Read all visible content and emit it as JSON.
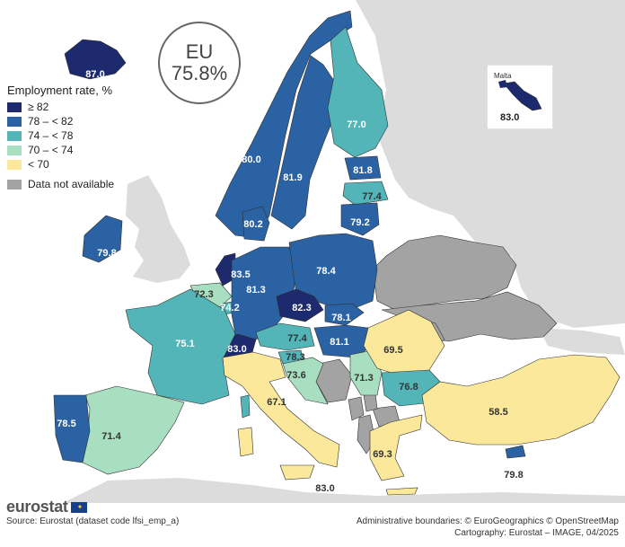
{
  "eu_badge": {
    "label": "EU",
    "value": "75.8%"
  },
  "legend": {
    "title": "Employment rate, %",
    "items": [
      {
        "label": "≥ 82",
        "color": "#1d2a6d"
      },
      {
        "label": "78 – < 82",
        "color": "#2b62a3"
      },
      {
        "label": "74 – < 78",
        "color": "#53b5b8"
      },
      {
        "label": "70 – < 74",
        "color": "#a7dfc0"
      },
      {
        "label": "< 70",
        "color": "#fbe89a"
      },
      {
        "label": "Data not available",
        "color": "#a3a3a3"
      }
    ]
  },
  "colors": {
    "non_eu_land": "#dcdcdc",
    "sea": "#ffffff",
    "borders": "#2f2f2f",
    "label_dark": "#222222",
    "label_light": "#ffffff"
  },
  "inset": {
    "title": "Malta",
    "value": "83.0"
  },
  "regions": [
    {
      "name": "Iceland",
      "value": "87.0"
    },
    {
      "name": "Norway",
      "value": "80.0"
    },
    {
      "name": "Sweden",
      "value": "81.9"
    },
    {
      "name": "Finland",
      "value": "77.0"
    },
    {
      "name": "Estonia",
      "value": "81.8"
    },
    {
      "name": "Latvia",
      "value": "77.4"
    },
    {
      "name": "Lithuania",
      "value": "79.2"
    },
    {
      "name": "Denmark",
      "value": "80.2"
    },
    {
      "name": "Ireland",
      "value": "79.8"
    },
    {
      "name": "Netherlands",
      "value": "83.5"
    },
    {
      "name": "Belgium",
      "value": "72.3"
    },
    {
      "name": "Luxembourg",
      "value": "74.2"
    },
    {
      "name": "Germany",
      "value": "81.3"
    },
    {
      "name": "Poland",
      "value": "78.4"
    },
    {
      "name": "Czechia",
      "value": "82.3"
    },
    {
      "name": "Slovakia",
      "value": "78.1"
    },
    {
      "name": "Hungary",
      "value": "81.1"
    },
    {
      "name": "Austria",
      "value": "77.4"
    },
    {
      "name": "Switzerland",
      "value": "83.0"
    },
    {
      "name": "Slovenia",
      "value": "78.3"
    },
    {
      "name": "Croatia",
      "value": "73.6"
    },
    {
      "name": "Serbia",
      "value": "71.3"
    },
    {
      "name": "Romania",
      "value": "69.5"
    },
    {
      "name": "Bulgaria",
      "value": "76.8"
    },
    {
      "name": "France",
      "value": "75.1"
    },
    {
      "name": "Spain",
      "value": "71.4"
    },
    {
      "name": "Portugal",
      "value": "78.5"
    },
    {
      "name": "Italy",
      "value": "67.1"
    },
    {
      "name": "Greece",
      "value": "69.3"
    },
    {
      "name": "Turkey",
      "value": "58.5"
    },
    {
      "name": "Cyprus",
      "value": "79.8"
    },
    {
      "name": "Malta",
      "value": "83.0"
    }
  ],
  "footer": {
    "logo": "eurostat",
    "source": "Source: Eurostat (dataset code lfsi_emp_a)",
    "credits_line1": "Administrative boundaries: © EuroGeographics © OpenStreetMap",
    "credits_line2": "Cartography: Eurostat – IMAGE, 04/2025"
  }
}
